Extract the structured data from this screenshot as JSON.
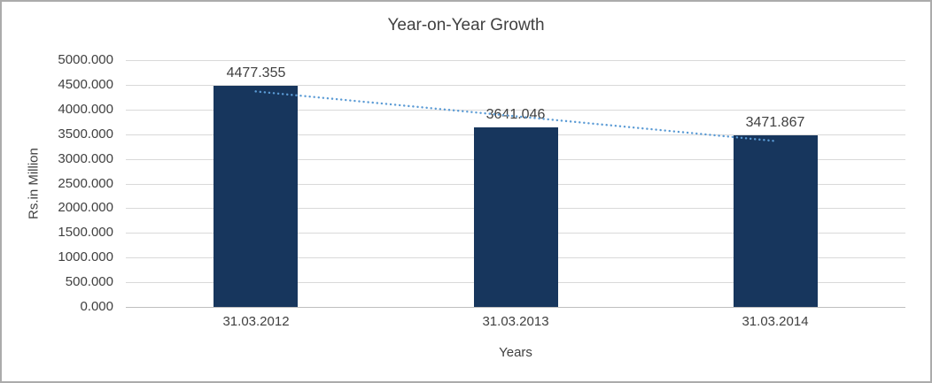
{
  "chart_data": {
    "type": "bar",
    "title": "Year-on-Year Growth",
    "xlabel": "Years",
    "ylabel": "Rs.in Million",
    "categories": [
      "31.03.2012",
      "31.03.2013",
      "31.03.2014"
    ],
    "values": [
      4477.355,
      3641.046,
      3471.867
    ],
    "data_labels": [
      "4477.355",
      "3641.046",
      "3471.867"
    ],
    "ylim": [
      0,
      5000
    ],
    "ytick_step": 500,
    "ytick_labels": [
      "0.000",
      "500.000",
      "1000.000",
      "1500.000",
      "2000.000",
      "2500.000",
      "3000.000",
      "3500.000",
      "4000.000",
      "4500.000",
      "5000.000"
    ],
    "grid": true,
    "legend": "none",
    "trendline": {
      "type": "linear",
      "style": "dotted"
    },
    "colors": {
      "bar": "#17365D",
      "trendline": "#5B9BD5",
      "gridline": "#D9D9D9",
      "axis_line": "#BFBFBF",
      "text": "#404040",
      "background": "#FFFFFF",
      "frame_border": "#ABABAB"
    }
  }
}
